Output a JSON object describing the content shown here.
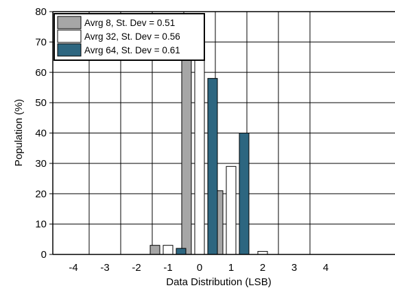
{
  "chart_data": {
    "type": "bar",
    "title": "",
    "xlabel": "Data Distribution (LSB)",
    "ylabel": "Population (%)",
    "categories": [
      "-4",
      "-3",
      "-2",
      "-1",
      "0",
      "1",
      "2",
      "3",
      "4"
    ],
    "ylim": [
      0,
      80
    ],
    "yticks": [
      "0",
      "10",
      "20",
      "30",
      "40",
      "50",
      "60",
      "70",
      "80"
    ],
    "grid": true,
    "legend_position": "top-left",
    "series": [
      {
        "name": "Avrg 8, St. Dev = 0.51",
        "color": "#a6a6a6",
        "values": [
          0,
          0,
          0,
          3,
          76,
          21,
          0,
          0,
          0
        ]
      },
      {
        "name": "Avrg 32, St. Dev = 0.56",
        "color": "#ffffff",
        "values": [
          0,
          0,
          0,
          3,
          67,
          29,
          1,
          0,
          0
        ]
      },
      {
        "name": "Avrg 64, St. Dev = 0.61",
        "color": "#2d6680",
        "values": [
          0,
          0,
          0,
          2,
          58,
          40,
          0,
          0,
          0
        ]
      }
    ]
  }
}
